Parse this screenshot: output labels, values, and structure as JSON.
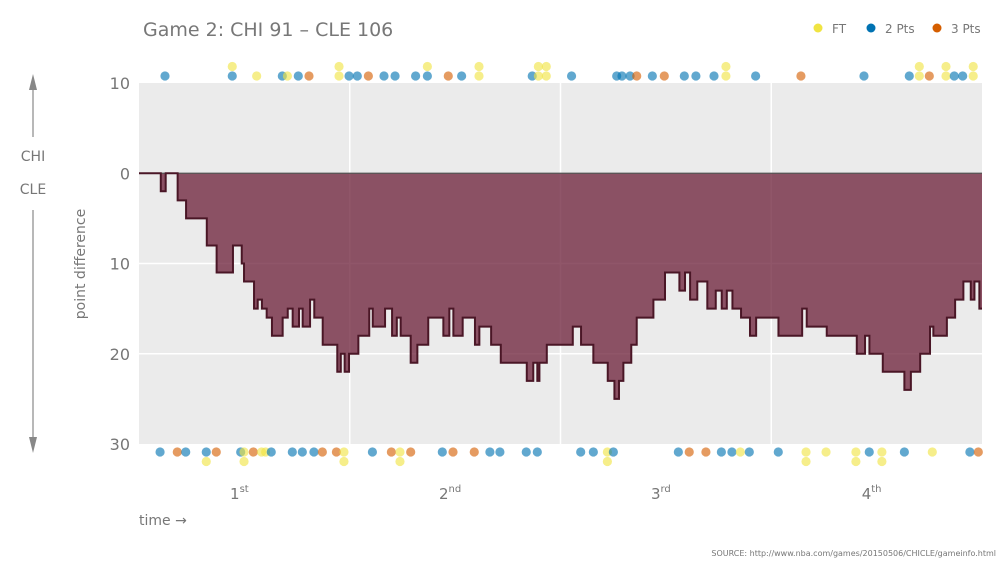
{
  "chart_data": {
    "type": "area",
    "title": "Game 2: CHI 91  –  CLE 106",
    "xlabel": "time →",
    "ylabel": "point difference",
    "team_top": "CHI",
    "team_bottom": "CLE",
    "source": "SOURCE: http://www.nba.com/games/20150506/CHICLE/gameinfo.html",
    "xlim": [
      0,
      48
    ],
    "ylim": [
      -10,
      30
    ],
    "y_ticks": [
      {
        "value": -10,
        "label": "10"
      },
      {
        "value": 0,
        "label": "0"
      },
      {
        "value": 10,
        "label": "10"
      },
      {
        "value": 20,
        "label": "20"
      },
      {
        "value": 30,
        "label": "30"
      }
    ],
    "quarters": [
      {
        "num": "1",
        "sup": "st"
      },
      {
        "num": "2",
        "sup": "nd"
      },
      {
        "num": "3",
        "sup": "rd"
      },
      {
        "num": "4",
        "sup": "th"
      }
    ],
    "legend": [
      {
        "key": "FT",
        "label": "FT",
        "color": "#f0e442"
      },
      {
        "key": "2",
        "label": "2 Pts",
        "color": "#0072b2"
      },
      {
        "key": "3",
        "label": "3 Pts",
        "color": "#d55e00"
      }
    ],
    "legend_placement": "top-right",
    "fill_color": "#6b1d37",
    "line_color": "#4a1626",
    "grid": true,
    "cle_lead_steps": [
      [
        0,
        0
      ],
      [
        1.24,
        2
      ],
      [
        1.52,
        0
      ],
      [
        2.2,
        3
      ],
      [
        2.68,
        5
      ],
      [
        3.86,
        8
      ],
      [
        4.42,
        11
      ],
      [
        5.35,
        8
      ],
      [
        5.85,
        10
      ],
      [
        5.98,
        12
      ],
      [
        6.55,
        15
      ],
      [
        6.76,
        14
      ],
      [
        7.0,
        15
      ],
      [
        7.27,
        16
      ],
      [
        7.57,
        18
      ],
      [
        8.18,
        16
      ],
      [
        8.47,
        15
      ],
      [
        8.75,
        17
      ],
      [
        9.11,
        15
      ],
      [
        9.32,
        17
      ],
      [
        9.74,
        14
      ],
      [
        9.98,
        16
      ],
      [
        10.46,
        19
      ],
      [
        11.29,
        22
      ],
      [
        11.49,
        20
      ],
      [
        11.71,
        22
      ],
      [
        11.96,
        20
      ],
      [
        12.49,
        18
      ],
      [
        13.11,
        15
      ],
      [
        13.31,
        17
      ],
      [
        14.01,
        15
      ],
      [
        14.41,
        18
      ],
      [
        14.68,
        16
      ],
      [
        14.9,
        18
      ],
      [
        15.47,
        21
      ],
      [
        15.85,
        19
      ],
      [
        16.47,
        16
      ],
      [
        17.33,
        18
      ],
      [
        17.67,
        15
      ],
      [
        17.9,
        18
      ],
      [
        18.43,
        16
      ],
      [
        19.13,
        19
      ],
      [
        19.38,
        17
      ],
      [
        20.05,
        19
      ],
      [
        20.6,
        21
      ],
      [
        22.08,
        23
      ],
      [
        22.45,
        21
      ],
      [
        22.68,
        23
      ],
      [
        22.8,
        21
      ],
      [
        23.22,
        19
      ],
      [
        24.7,
        17
      ],
      [
        25.17,
        19
      ],
      [
        25.87,
        21
      ],
      [
        26.69,
        23
      ],
      [
        27.07,
        25
      ],
      [
        27.33,
        23
      ],
      [
        27.58,
        21
      ],
      [
        28.03,
        19
      ],
      [
        28.34,
        16
      ],
      [
        29.29,
        14
      ],
      [
        29.95,
        11
      ],
      [
        30.77,
        13
      ],
      [
        31.09,
        11
      ],
      [
        31.38,
        14
      ],
      [
        31.79,
        12
      ],
      [
        32.36,
        15
      ],
      [
        32.84,
        13
      ],
      [
        33.18,
        15
      ],
      [
        33.47,
        13
      ],
      [
        33.79,
        15
      ],
      [
        34.28,
        16
      ],
      [
        34.79,
        18
      ],
      [
        35.14,
        16
      ],
      [
        36.41,
        18
      ],
      [
        37.76,
        15
      ],
      [
        38.02,
        17
      ],
      [
        39.16,
        18
      ],
      [
        40.87,
        20
      ],
      [
        41.34,
        18
      ],
      [
        41.59,
        20
      ],
      [
        42.35,
        22
      ],
      [
        43.58,
        24
      ],
      [
        43.95,
        22
      ],
      [
        44.48,
        20
      ],
      [
        45.04,
        17
      ],
      [
        45.23,
        18
      ],
      [
        46.0,
        16
      ],
      [
        46.47,
        14
      ],
      [
        46.94,
        12
      ],
      [
        47.36,
        14
      ],
      [
        47.57,
        12
      ],
      [
        47.85,
        15
      ],
      [
        48,
        15
      ]
    ],
    "scoring": {
      "CHI": [
        [
          1.48,
          "2"
        ],
        [
          5.31,
          "2"
        ],
        [
          5.31,
          "FT"
        ],
        [
          6.7,
          "FT"
        ],
        [
          8.16,
          "2"
        ],
        [
          8.45,
          "FT"
        ],
        [
          9.07,
          "2"
        ],
        [
          9.68,
          "3"
        ],
        [
          11.39,
          "FT"
        ],
        [
          11.39,
          "FT"
        ],
        [
          11.96,
          "2"
        ],
        [
          12.43,
          "2"
        ],
        [
          13.06,
          "3"
        ],
        [
          13.95,
          "2"
        ],
        [
          14.58,
          "2"
        ],
        [
          15.75,
          "2"
        ],
        [
          16.42,
          "2"
        ],
        [
          16.42,
          "FT"
        ],
        [
          17.61,
          "3"
        ],
        [
          18.37,
          "2"
        ],
        [
          19.36,
          "FT"
        ],
        [
          19.36,
          "FT"
        ],
        [
          22.39,
          "2"
        ],
        [
          22.74,
          "FT"
        ],
        [
          22.74,
          "FT"
        ],
        [
          23.19,
          "FT"
        ],
        [
          23.19,
          "FT"
        ],
        [
          24.63,
          "2"
        ],
        [
          27.2,
          "2"
        ],
        [
          27.5,
          "2"
        ],
        [
          27.96,
          "2"
        ],
        [
          28.34,
          "3"
        ],
        [
          29.23,
          "2"
        ],
        [
          29.91,
          "3"
        ],
        [
          31.05,
          "2"
        ],
        [
          31.71,
          "2"
        ],
        [
          32.74,
          "2"
        ],
        [
          33.42,
          "FT"
        ],
        [
          33.42,
          "FT"
        ],
        [
          35.11,
          "2"
        ],
        [
          37.69,
          "3"
        ],
        [
          41.28,
          "2"
        ],
        [
          43.86,
          "2"
        ],
        [
          44.43,
          "FT"
        ],
        [
          44.43,
          "FT"
        ],
        [
          45.0,
          "3"
        ],
        [
          45.95,
          "FT"
        ],
        [
          45.95,
          "FT"
        ],
        [
          46.42,
          "2"
        ],
        [
          46.9,
          "2"
        ],
        [
          47.5,
          "FT"
        ],
        [
          47.5,
          "FT"
        ]
      ],
      "CLE": [
        [
          1.2,
          "2"
        ],
        [
          2.18,
          "3"
        ],
        [
          2.66,
          "2"
        ],
        [
          3.83,
          "2"
        ],
        [
          3.83,
          "FT"
        ],
        [
          4.4,
          "3"
        ],
        [
          5.79,
          "2"
        ],
        [
          5.98,
          "FT"
        ],
        [
          5.98,
          "FT"
        ],
        [
          6.51,
          "3"
        ],
        [
          6.98,
          "FT"
        ],
        [
          7.21,
          "FT"
        ],
        [
          7.53,
          "2"
        ],
        [
          8.73,
          "2"
        ],
        [
          9.3,
          "2"
        ],
        [
          9.96,
          "2"
        ],
        [
          10.44,
          "3"
        ],
        [
          11.24,
          "3"
        ],
        [
          11.67,
          "FT"
        ],
        [
          11.67,
          "FT"
        ],
        [
          13.29,
          "2"
        ],
        [
          14.37,
          "3"
        ],
        [
          14.86,
          "FT"
        ],
        [
          14.86,
          "FT"
        ],
        [
          15.47,
          "3"
        ],
        [
          17.27,
          "2"
        ],
        [
          17.88,
          "3"
        ],
        [
          19.09,
          "3"
        ],
        [
          19.98,
          "2"
        ],
        [
          20.55,
          "2"
        ],
        [
          22.05,
          "2"
        ],
        [
          22.68,
          "2"
        ],
        [
          25.15,
          "2"
        ],
        [
          25.87,
          "2"
        ],
        [
          26.67,
          "FT"
        ],
        [
          26.67,
          "FT"
        ],
        [
          27.01,
          "2"
        ],
        [
          30.71,
          "2"
        ],
        [
          31.33,
          "3"
        ],
        [
          32.28,
          "3"
        ],
        [
          33.16,
          "2"
        ],
        [
          33.76,
          "2"
        ],
        [
          34.24,
          "FT"
        ],
        [
          34.75,
          "2"
        ],
        [
          36.4,
          "2"
        ],
        [
          37.98,
          "FT"
        ],
        [
          37.98,
          "FT"
        ],
        [
          39.12,
          "FT"
        ],
        [
          40.82,
          "FT"
        ],
        [
          40.82,
          "FT"
        ],
        [
          41.58,
          "2"
        ],
        [
          42.3,
          "FT"
        ],
        [
          42.3,
          "FT"
        ],
        [
          43.58,
          "2"
        ],
        [
          45.17,
          "FT"
        ],
        [
          47.31,
          "2"
        ],
        [
          47.79,
          "3"
        ]
      ]
    }
  }
}
